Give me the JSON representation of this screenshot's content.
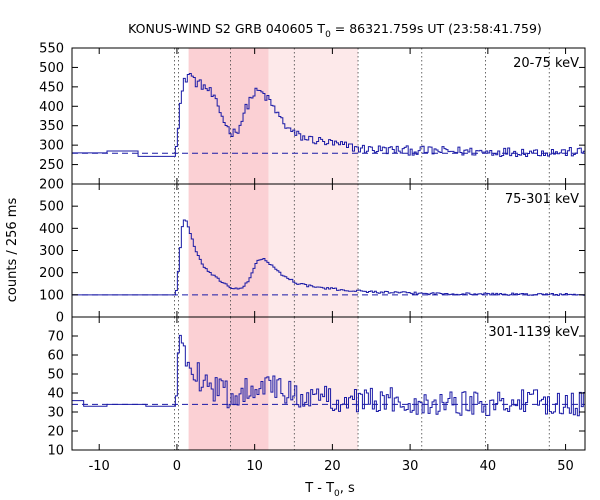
{
  "chart_data": {
    "type": "line",
    "title": {
      "pre": "KONUS-WIND S2 GRB 040605 T",
      "sub": "0",
      "post": " = 86321.759s UT (23:58:41.759)"
    },
    "xlabel": {
      "pre": "T - T",
      "sub": "0",
      "post": ", s"
    },
    "ylabel": "counts / 256 ms",
    "xlim": [
      -13.5,
      52.5
    ],
    "x_ticks": [
      -10,
      0,
      10,
      20,
      30,
      40,
      50
    ],
    "shaded_intervals": [
      {
        "from": 1.5,
        "to": 11.8,
        "color": "#fbd0d4"
      },
      {
        "from": 11.8,
        "to": 23.3,
        "color": "#fde9ea"
      }
    ],
    "vertical_markers": [
      -0.3,
      0.2,
      6.9,
      15.1,
      23.3,
      31.5,
      39.7,
      47.9
    ],
    "series_color": "#1a1aa6",
    "panels": [
      {
        "label": "20-75 keV",
        "ylim": [
          200,
          550
        ],
        "y_ticks": [
          250,
          300,
          350,
          400,
          450,
          500,
          550
        ],
        "y_tick_labels": [
          "250",
          "300",
          "350",
          "400",
          "450",
          "500",
          "550"
        ],
        "bottom_label": "200",
        "background": 279,
        "pre_trigger": [
          [
            -13.5,
            280
          ],
          [
            -9,
            280
          ],
          [
            -9,
            285
          ],
          [
            -5,
            285
          ],
          [
            -5,
            271
          ],
          [
            -0.2,
            271
          ]
        ],
        "keypoints": [
          [
            0,
            300
          ],
          [
            0.3,
            390
          ],
          [
            0.9,
            460
          ],
          [
            1.6,
            487
          ],
          [
            2.4,
            462
          ],
          [
            3.2,
            455
          ],
          [
            4.2,
            440
          ],
          [
            5.0,
            410
          ],
          [
            5.8,
            375
          ],
          [
            6.5,
            345
          ],
          [
            7.2,
            330
          ],
          [
            8.0,
            345
          ],
          [
            8.8,
            390
          ],
          [
            9.6,
            425
          ],
          [
            10.4,
            440
          ],
          [
            11.2,
            430
          ],
          [
            12.0,
            410
          ],
          [
            12.8,
            385
          ],
          [
            13.8,
            355
          ],
          [
            15.0,
            330
          ],
          [
            16.5,
            318
          ],
          [
            18.5,
            310
          ],
          [
            21.0,
            300
          ],
          [
            24.0,
            290
          ],
          [
            30.0,
            286
          ],
          [
            40.0,
            283
          ],
          [
            52.5,
            282
          ]
        ],
        "noise": 12
      },
      {
        "label": "75-301 keV",
        "ylim": [
          0,
          600
        ],
        "y_ticks": [
          100,
          200,
          300,
          400,
          500
        ],
        "y_tick_labels": [
          "100",
          "200",
          "300",
          "400",
          "500"
        ],
        "bottom_label": "0",
        "background": 100,
        "pre_trigger": [
          [
            -13.5,
            100
          ],
          [
            -0.2,
            100
          ]
        ],
        "keypoints": [
          [
            0,
            120
          ],
          [
            0.3,
            260
          ],
          [
            0.7,
            410
          ],
          [
            1.1,
            450
          ],
          [
            1.7,
            380
          ],
          [
            2.4,
            300
          ],
          [
            3.2,
            240
          ],
          [
            4.2,
            200
          ],
          [
            5.2,
            172
          ],
          [
            6.2,
            150
          ],
          [
            7.2,
            128
          ],
          [
            8.2,
            125
          ],
          [
            9.2,
            160
          ],
          [
            10.2,
            248
          ],
          [
            11.0,
            265
          ],
          [
            11.8,
            245
          ],
          [
            12.8,
            210
          ],
          [
            14.0,
            180
          ],
          [
            15.5,
            152
          ],
          [
            17.0,
            140
          ],
          [
            19.0,
            130
          ],
          [
            22.0,
            120
          ],
          [
            26.0,
            112
          ],
          [
            32.0,
            106
          ],
          [
            42.0,
            103
          ],
          [
            52.5,
            101
          ]
        ],
        "noise": 5
      },
      {
        "label": "301-1139 keV",
        "ylim": [
          10,
          80
        ],
        "y_ticks": [
          20,
          30,
          40,
          50,
          60,
          70
        ],
        "y_tick_labels": [
          "20",
          "30",
          "40",
          "50",
          "60",
          "70"
        ],
        "bottom_label": "10",
        "background": 34,
        "pre_trigger": [
          [
            -13.5,
            36
          ],
          [
            -12,
            36
          ],
          [
            -12,
            33
          ],
          [
            -9,
            33
          ],
          [
            -9,
            34
          ],
          [
            -4,
            34
          ],
          [
            -4,
            33
          ],
          [
            -0.2,
            33
          ]
        ],
        "keypoints": [
          [
            0,
            38
          ],
          [
            0.3,
            65
          ],
          [
            0.6,
            74
          ],
          [
            1.0,
            62
          ],
          [
            1.8,
            56
          ],
          [
            3.0,
            48
          ],
          [
            5.0,
            42
          ],
          [
            7.0,
            38
          ],
          [
            9.0,
            42
          ],
          [
            10.5,
            46
          ],
          [
            12.0,
            43
          ],
          [
            14.0,
            40
          ],
          [
            17.0,
            38
          ],
          [
            20.0,
            37
          ],
          [
            25.0,
            36
          ],
          [
            35.0,
            35
          ],
          [
            52.5,
            35
          ]
        ],
        "noise": 7
      }
    ]
  }
}
